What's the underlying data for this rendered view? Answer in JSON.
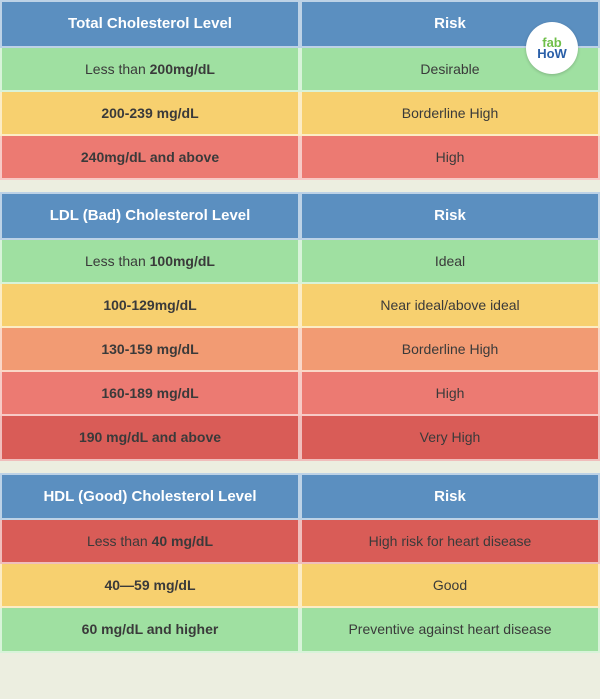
{
  "colors": {
    "header": "#5b8fc0",
    "header_text": "#ffffff",
    "green": "#9fe0a1",
    "yellow": "#f7d06f",
    "orange": "#f29b73",
    "coral": "#ec7a72",
    "red": "#d95c57",
    "text": "#3a3a3a",
    "background": "#eceee0"
  },
  "badge": {
    "fab": "fab",
    "how": "HoW"
  },
  "tables": [
    {
      "headers": [
        "Total Cholesterol Level",
        "Risk"
      ],
      "rows": [
        {
          "level_prefix": "Less than ",
          "level_bold": "200mg/dL",
          "level_suffix": "",
          "risk": "Desirable",
          "color": "green"
        },
        {
          "level_prefix": "",
          "level_bold": "200-239 mg/dL",
          "level_suffix": "",
          "risk": "Borderline High",
          "color": "yellow"
        },
        {
          "level_prefix": "",
          "level_bold": "240mg/dL and above",
          "level_suffix": "",
          "risk": "High",
          "color": "coral"
        }
      ]
    },
    {
      "headers": [
        "LDL (Bad) Cholesterol Level",
        "Risk"
      ],
      "rows": [
        {
          "level_prefix": "Less than ",
          "level_bold": "100mg/dL",
          "level_suffix": "",
          "risk": "Ideal",
          "color": "green"
        },
        {
          "level_prefix": "",
          "level_bold": "100-129mg/dL",
          "level_suffix": "",
          "risk": "Near ideal/above ideal",
          "color": "yellow"
        },
        {
          "level_prefix": "",
          "level_bold": "130-159 mg/dL",
          "level_suffix": "",
          "risk": "Borderline High",
          "color": "orange"
        },
        {
          "level_prefix": "",
          "level_bold": "160-189 mg/dL",
          "level_suffix": "",
          "risk": "High",
          "color": "coral"
        },
        {
          "level_prefix": "",
          "level_bold": "190 mg/dL and above",
          "level_suffix": "",
          "risk": "Very High",
          "color": "red"
        }
      ]
    },
    {
      "headers": [
        "HDL (Good) Cholesterol Level",
        "Risk"
      ],
      "rows": [
        {
          "level_prefix": "Less than ",
          "level_bold": "40 mg/dL",
          "level_suffix": "",
          "risk": "High risk for heart disease",
          "color": "red"
        },
        {
          "level_prefix": "",
          "level_bold": "40—59 mg/dL",
          "level_suffix": "",
          "risk": "Good",
          "color": "yellow"
        },
        {
          "level_prefix": "",
          "level_bold": "60 mg/dL and higher",
          "level_suffix": "",
          "risk": "Preventive against heart disease",
          "color": "green"
        }
      ]
    }
  ]
}
